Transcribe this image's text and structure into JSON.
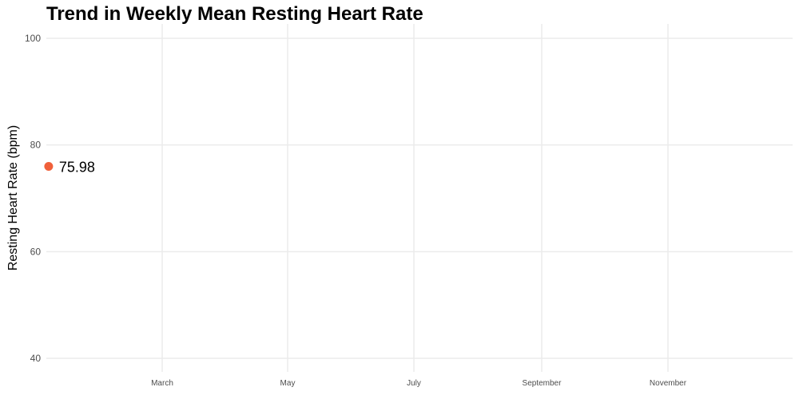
{
  "chart_data": {
    "type": "scatter",
    "title": "Trend in Weekly Mean Resting Heart Rate",
    "xlabel": "",
    "ylabel": "Resting Heart Rate (bpm)",
    "x_ticks": [
      "March",
      "May",
      "July",
      "September",
      "November"
    ],
    "y_ticks": [
      40,
      60,
      80,
      100
    ],
    "ylim": [
      40,
      100
    ],
    "grid": true,
    "points": [
      {
        "x": "2020-01-06",
        "y": 75.98,
        "label": "75.98"
      }
    ],
    "point_color": "#f0603a"
  }
}
